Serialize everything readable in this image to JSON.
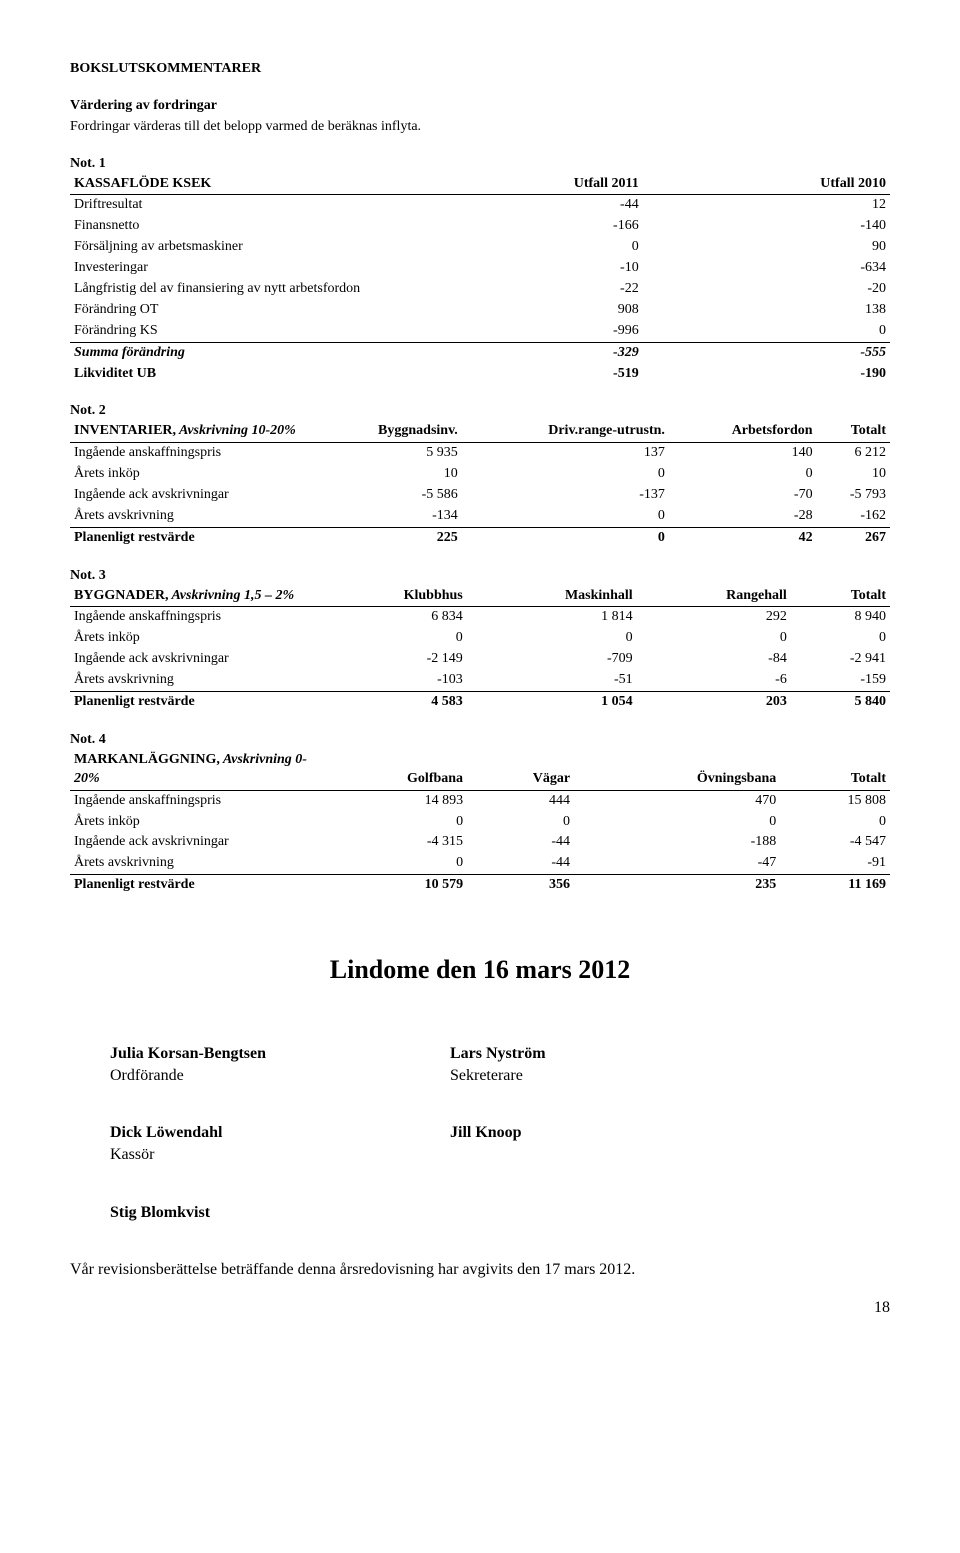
{
  "header": {
    "title": "BOKSLUTSKOMMENTARER",
    "valuation_title": "Värdering av fordringar",
    "valuation_text": "Fordringar värderas till det belopp varmed de beräknas inflyta."
  },
  "note1": {
    "label": "Not. 1",
    "table_header": [
      "KASSAFLÖDE KSEK",
      "Utfall 2011",
      "Utfall 2010"
    ],
    "rows": [
      {
        "label": "Driftresultat",
        "c1": "-44",
        "c2": "12",
        "bold": false,
        "italic": false
      },
      {
        "label": "Finansnetto",
        "c1": "-166",
        "c2": "-140",
        "bold": false,
        "italic": false
      },
      {
        "label": "Försäljning av arbetsmaskiner",
        "c1": "0",
        "c2": "90",
        "bold": false,
        "italic": false
      },
      {
        "label": "Investeringar",
        "c1": "-10",
        "c2": "-634",
        "bold": false,
        "italic": false
      },
      {
        "label": "Långfristig del av finansiering av nytt arbetsfordon",
        "c1": "-22",
        "c2": "-20",
        "bold": false,
        "italic": false
      },
      {
        "label": "Förändring OT",
        "c1": "908",
        "c2": "138",
        "bold": false,
        "italic": false
      },
      {
        "label": "Förändring KS",
        "c1": "-996",
        "c2": "0",
        "bold": false,
        "italic": false
      },
      {
        "label": "Summa förändring",
        "c1": "-329",
        "c2": "-555",
        "bold": true,
        "italic": true,
        "topline": true
      },
      {
        "label": "Likviditet UB",
        "c1": "-519",
        "c2": "-190",
        "bold": true,
        "italic": false
      }
    ]
  },
  "note2": {
    "label": "Not. 2",
    "table_header": [
      "INVENTARIER, Avskrivning 10-20%",
      "Byggnadsinv.",
      "Driv.range-utrustn.",
      "Arbetsfordon",
      "Totalt"
    ],
    "rows": [
      {
        "label": "Ingående anskaffningspris",
        "c1": "5 935",
        "c2": "137",
        "c3": "140",
        "c4": "6 212"
      },
      {
        "label": "Årets inköp",
        "c1": "10",
        "c2": "0",
        "c3": "0",
        "c4": "10"
      },
      {
        "label": "Ingående ack avskrivningar",
        "c1": "-5 586",
        "c2": "-137",
        "c3": "-70",
        "c4": "-5 793"
      },
      {
        "label": "Årets avskrivning",
        "c1": "-134",
        "c2": "0",
        "c3": "-28",
        "c4": "-162"
      },
      {
        "label": "Planenligt restvärde",
        "c1": "225",
        "c2": "0",
        "c3": "42",
        "c4": "267",
        "bold": true,
        "topline": true
      }
    ]
  },
  "note3": {
    "label": "Not. 3",
    "table_header": [
      "BYGGNADER, Avskrivning 1,5 – 2%",
      "Klubbhus",
      "Maskinhall",
      "Rangehall",
      "Totalt"
    ],
    "rows": [
      {
        "label": "Ingående anskaffningspris",
        "c1": "6 834",
        "c2": "1 814",
        "c3": "292",
        "c4": "8 940"
      },
      {
        "label": "Årets inköp",
        "c1": "0",
        "c2": "0",
        "c3": "0",
        "c4": "0"
      },
      {
        "label": "Ingående ack avskrivningar",
        "c1": "-2 149",
        "c2": "-709",
        "c3": "-84",
        "c4": "-2 941"
      },
      {
        "label": "Årets avskrivning",
        "c1": "-103",
        "c2": "-51",
        "c3": "-6",
        "c4": "-159"
      },
      {
        "label": "Planenligt restvärde",
        "c1": "4 583",
        "c2": "1 054",
        "c3": "203",
        "c4": "5 840",
        "bold": true,
        "topline": true
      }
    ]
  },
  "note4": {
    "label": "Not. 4",
    "table_header": [
      "MARKANLÄGGNING, Avskrivning 0-20%",
      "Golfbana",
      "Vägar",
      "Övningsbana",
      "Totalt"
    ],
    "rows": [
      {
        "label": "Ingående anskaffningspris",
        "c1": "14 893",
        "c2": "444",
        "c3": "470",
        "c4": "15 808"
      },
      {
        "label": "Årets inköp",
        "c1": "0",
        "c2": "0",
        "c3": "0",
        "c4": "0"
      },
      {
        "label": "Ingående ack avskrivningar",
        "c1": "-4 315",
        "c2": "-44",
        "c3": "-188",
        "c4": "-4 547"
      },
      {
        "label": "Årets avskrivning",
        "c1": "0",
        "c2": "-44",
        "c3": "-47",
        "c4": "-91"
      },
      {
        "label": "Planenligt restvärde",
        "c1": "10 579",
        "c2": "356",
        "c3": "235",
        "c4": "11 169",
        "bold": true,
        "topline": true
      }
    ]
  },
  "footer": {
    "place_date": "Lindome den 16 mars 2012",
    "sig1_name": "Julia Korsan-Bengtsen",
    "sig1_role": "Ordförande",
    "sig2_name": "Lars Nyström",
    "sig2_role": "Sekreterare",
    "sig3_name": "Dick Löwendahl",
    "sig3_role": "Kassör",
    "sig4_name": "Jill Knoop",
    "sig5_name": "Stig Blomkvist",
    "audit_text": "Vår revisionsberättelse beträffande denna årsredovisning har avgivits den 17 mars 2012.",
    "page_number": "18"
  }
}
